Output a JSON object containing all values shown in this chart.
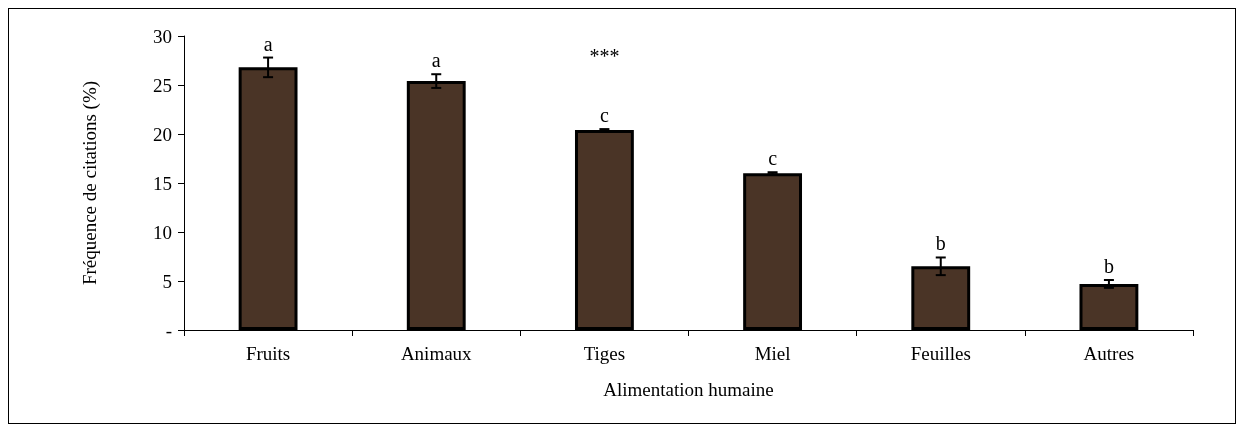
{
  "chart_data": {
    "type": "bar",
    "xlabel": "Alimentation humaine",
    "ylabel": "Fréquence de citations (%)",
    "categories": [
      "Fruits",
      "Animaux",
      "Tiges",
      "Miel",
      "Feuilles",
      "Autres"
    ],
    "values": [
      26.8,
      25.4,
      20.4,
      16.0,
      6.5,
      4.7
    ],
    "errors": [
      1.0,
      0.7,
      0.1,
      0.1,
      0.9,
      0.4
    ],
    "color": "#4a3426",
    "ylim": [
      0,
      30
    ],
    "yticks": [
      {
        "value": 0,
        "label": "-"
      },
      5,
      10,
      15,
      20,
      25,
      30
    ],
    "grid": false,
    "annotations": [
      "a",
      "a",
      "c",
      "c",
      "b",
      "b",
      "***"
    ]
  }
}
